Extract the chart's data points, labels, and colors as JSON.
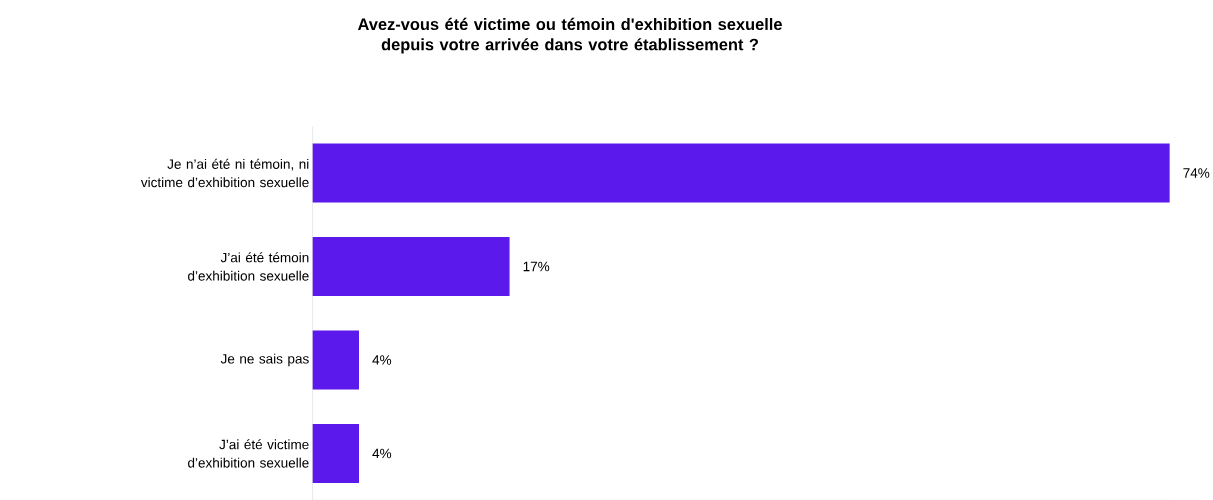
{
  "chart_data": {
    "type": "bar",
    "orientation": "horizontal",
    "title": "Avez-vous été victime ou témoin d'exhibition sexuelle depuis votre arrivée dans votre établissement ?",
    "categories": [
      "Je n’ai été ni témoin, ni victime d’exhibition sexuelle",
      "J’ai été témoin d’exhibition sexuelle",
      "Je ne sais pas",
      "J’ai été victime d’exhibition sexuelle"
    ],
    "values": [
      74,
      17,
      4,
      4
    ],
    "value_labels": [
      "74%",
      "17%",
      "4%",
      "4%"
    ],
    "color": "#5b19ec"
  }
}
